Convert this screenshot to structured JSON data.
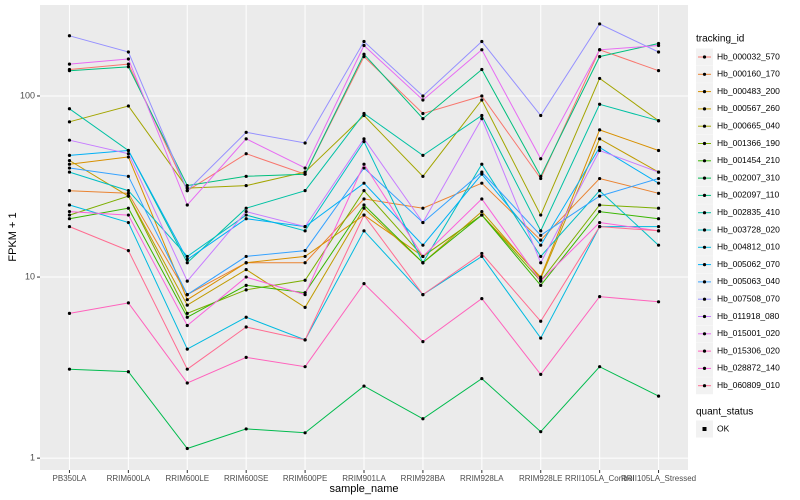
{
  "chart_data": {
    "type": "line",
    "x_label": "sample_name",
    "y_label": "FPKM + 1",
    "log_y": true,
    "grid": true,
    "legend_title": "tracking_id",
    "legend2_title": "quant_status",
    "legend2_items": [
      "OK"
    ],
    "point_color": "#000000",
    "categories": [
      "PB350LA",
      "RRIM600LA",
      "RRIM600LE",
      "RRIM600SE",
      "RRIM600PE",
      "RRIM901LA",
      "RRIM928BA",
      "RRIM928LA",
      "RRIM928LE",
      "RRII105LA_Control",
      "RRII105LA_Stressed"
    ],
    "ylim": [
      0.86,
      318
    ],
    "yticks": [
      1,
      10,
      100
    ],
    "series": [
      {
        "name": "Hb_000032_570",
        "color": "#F8766D",
        "values": [
          140,
          150,
          30,
          48,
          37,
          165,
          80,
          100,
          35,
          180,
          138
        ]
      },
      {
        "name": "Hb_000160_170",
        "color": "#EA8331",
        "values": [
          30,
          29,
          8,
          12,
          12,
          27,
          24,
          33,
          16,
          35,
          29
        ]
      },
      {
        "name": "Hb_000483_200",
        "color": "#D89000",
        "values": [
          42,
          46,
          7.5,
          12,
          13,
          22,
          13,
          22,
          10,
          65,
          50
        ]
      },
      {
        "name": "Hb_000567_260",
        "color": "#C09B00",
        "values": [
          44,
          28,
          7,
          11,
          6.8,
          24,
          12,
          23,
          9.8,
          58,
          38
        ]
      },
      {
        "name": "Hb_000665_040",
        "color": "#A3A500",
        "values": [
          72,
          88,
          31,
          32,
          38,
          78,
          36,
          95,
          22,
          125,
          73
        ]
      },
      {
        "name": "Hb_001366_190",
        "color": "#7CAE00",
        "values": [
          22,
          28,
          6.3,
          8.5,
          9.6,
          30,
          13,
          22,
          9.5,
          25,
          24
        ]
      },
      {
        "name": "Hb_001454_210",
        "color": "#39B600",
        "values": [
          21,
          24,
          6,
          9,
          8.2,
          25,
          12,
          22,
          9,
          23,
          21
        ]
      },
      {
        "name": "Hb_002007_310",
        "color": "#00BB4E",
        "values": [
          3.1,
          3.0,
          1.13,
          1.45,
          1.38,
          2.5,
          1.65,
          2.75,
          1.4,
          3.2,
          2.2
        ]
      },
      {
        "name": "Hb_002097_110",
        "color": "#00BF7D",
        "values": [
          138,
          145,
          32,
          36,
          37,
          170,
          75,
          140,
          36,
          165,
          195
        ]
      },
      {
        "name": "Hb_002835_410",
        "color": "#00C1A3",
        "values": [
          85,
          50,
          12,
          24,
          30,
          80,
          47,
          78,
          18,
          90,
          73
        ]
      },
      {
        "name": "Hb_003728_020",
        "color": "#00BFC4",
        "values": [
          38,
          30,
          13,
          22,
          18,
          56,
          12,
          42,
          13,
          30,
          15
        ]
      },
      {
        "name": "Hb_004812_010",
        "color": "#00BAE0",
        "values": [
          25,
          20,
          4,
          6,
          4.5,
          18,
          8,
          13,
          4.6,
          19,
          19
        ]
      },
      {
        "name": "Hb_005062_070",
        "color": "#00B0F6",
        "values": [
          47,
          50,
          12.5,
          21,
          19,
          33,
          15,
          37,
          15,
          52,
          33
        ]
      },
      {
        "name": "Hb_005063_040",
        "color": "#35A2FF",
        "values": [
          40,
          36,
          8,
          13,
          14,
          40,
          20,
          38,
          17,
          28,
          35
        ]
      },
      {
        "name": "Hb_007508_070",
        "color": "#9590FF",
        "values": [
          215,
          175,
          30,
          63,
          55,
          200,
          100,
          200,
          78,
          250,
          175
        ]
      },
      {
        "name": "Hb_011918_080",
        "color": "#C77CFF",
        "values": [
          57,
          48,
          9.5,
          23,
          19,
          58,
          20,
          75,
          12,
          50,
          38
        ]
      },
      {
        "name": "Hb_015001_020",
        "color": "#E76BF3",
        "values": [
          150,
          160,
          25,
          58,
          40,
          190,
          95,
          180,
          45,
          180,
          190
        ]
      },
      {
        "name": "Hb_015306_020",
        "color": "#FF62BC",
        "values": [
          6.3,
          7.2,
          2.6,
          3.6,
          3.2,
          9.2,
          4.4,
          7.6,
          2.9,
          7.8,
          7.3
        ]
      },
      {
        "name": "Hb_028872_140",
        "color": "#FA62DB",
        "values": [
          23,
          22,
          5.4,
          10,
          8,
          42,
          13,
          27,
          9.5,
          20,
          18
        ]
      },
      {
        "name": "Hb_060809_010",
        "color": "#FF6C91",
        "values": [
          19,
          14,
          3.1,
          5.3,
          4.5,
          22,
          8,
          13.5,
          5.7,
          19,
          18
        ]
      }
    ]
  }
}
